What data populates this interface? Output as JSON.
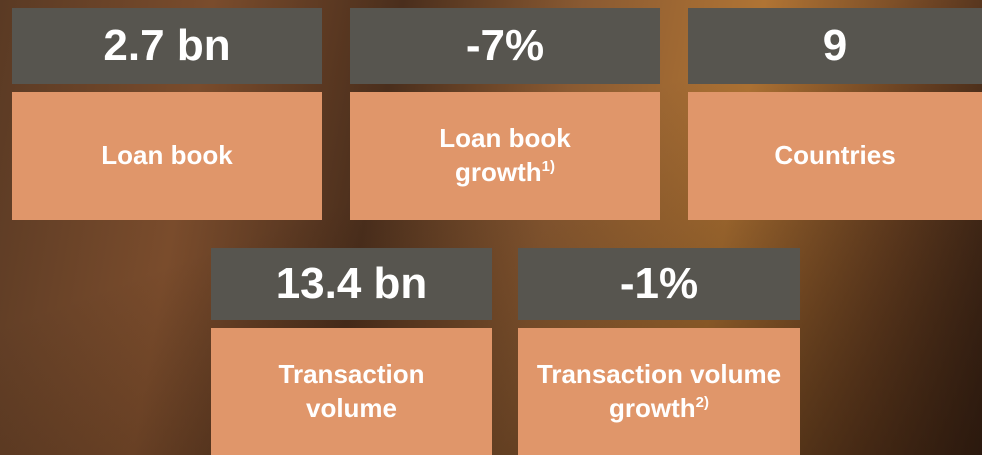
{
  "tiles": [
    {
      "value": "2.7 bn",
      "label": "Loan book"
    },
    {
      "value": "-7%",
      "label": "Loan book growth",
      "footnote": "1)"
    },
    {
      "value": "9",
      "label": "Countries"
    },
    {
      "value": "13.4 bn",
      "label": "Transaction volume"
    },
    {
      "value": "-1%",
      "label": "Transaction volume growth",
      "footnote": "2)"
    }
  ]
}
